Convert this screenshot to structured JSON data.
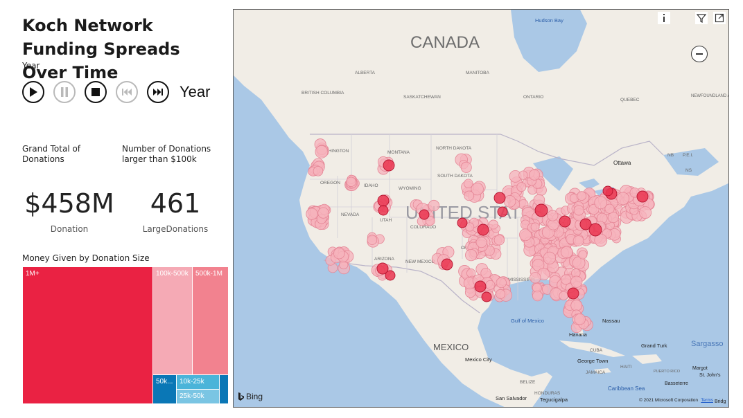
{
  "title": "Koch Network Funding Spreads Over Time",
  "play_axis": {
    "field_label": "Year",
    "current_label": "Year"
  },
  "kpis": [
    {
      "label": "Grand Total of Donations",
      "value": "$458M",
      "sublabel": "Donation"
    },
    {
      "label": "Number of Donations larger than $100k",
      "value": "461",
      "sublabel": "LargeDonations"
    }
  ],
  "treemap": {
    "title": "Money Given by Donation Size",
    "cells": [
      {
        "label": "1M+",
        "color": "#ea2243"
      },
      {
        "label": "100k-500k",
        "color": "#f5aab5"
      },
      {
        "label": "500k-1M",
        "color": "#f2828f"
      },
      {
        "label": "50k...",
        "color": "#0a77b6"
      },
      {
        "label": "10k-25k",
        "color": "#4ab4d9"
      },
      {
        "label": "25k-50k",
        "color": "#7ac5e3"
      },
      {
        "label": "",
        "color": "#0a77b6"
      }
    ]
  },
  "map": {
    "country_labels": [
      "CANADA",
      "UNITED STATES",
      "MEXICO"
    ],
    "place_labels": [
      "Hudson Bay",
      "ALBERTA",
      "MANITOBA",
      "BRITISH COLUMBIA",
      "SASKATCHEWAN",
      "ONTARIO",
      "QUEBEC",
      "NEWFOUNDLAND AND LABRADOR",
      "WASHINGTON",
      "MONTANA",
      "NORTH DAKOTA",
      "SOUTH DAKOTA",
      "OREGON",
      "IDAHO",
      "WYOMING",
      "NEVADA",
      "UTAH",
      "COLORADO",
      "ARIZONA",
      "NEW MEXICO",
      "OKLAHOMA",
      "MISSISSIPPI",
      "Ottawa",
      "NB",
      "P.E.I.",
      "NS",
      "Gulf of Mexico",
      "Havana",
      "CUBA",
      "Nassau",
      "Grand Turk",
      "Sargasso",
      "Mexico City",
      "George Town",
      "HAITI",
      "JAMAICA",
      "PUERTO RICO",
      "Caribbean Sea",
      "BELIZE",
      "HONDURAS",
      "Tegucigalpa",
      "San Salvador",
      "Margot",
      "St. John's",
      "Basseterre",
      "Bridg"
    ],
    "provider": "Bing",
    "copyright": "© 2021 Microsoft Corporation",
    "terms": "Terms",
    "dot_color": "#ea3550",
    "land_color": "#f1ede6",
    "water_color": "#aac8e6"
  }
}
